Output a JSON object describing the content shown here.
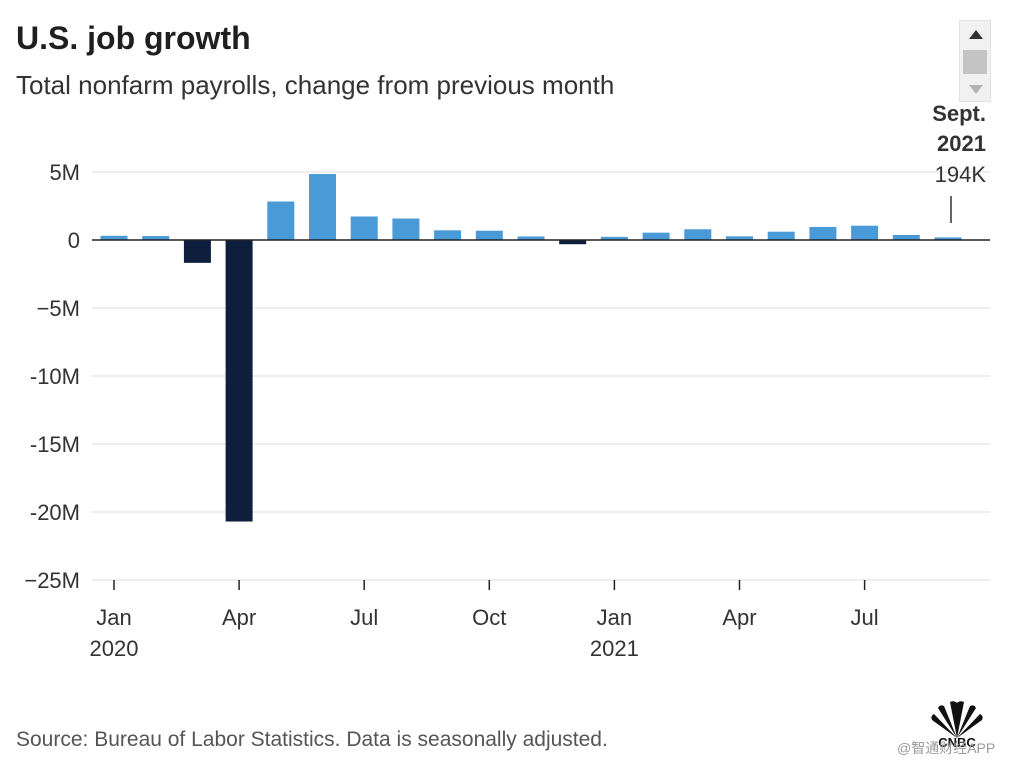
{
  "header": {
    "title": "U.S. job growth",
    "subtitle": "Total nonfarm payrolls, change from previous month"
  },
  "annotation": {
    "month": "Sept.",
    "year": "2021",
    "value_label": "194K"
  },
  "source": "Source: Bureau of Labor Statistics. Data is seasonally adjusted.",
  "logo": {
    "text": "CNBC",
    "icon": "peacock-logo-icon"
  },
  "watermark": "@智通财经APP",
  "colors": {
    "positive": "#4a9ad8",
    "negative": "#0d1f3c",
    "grid": "#dcdcdc",
    "axis": "#222222"
  },
  "chart_data": {
    "type": "bar",
    "title": "U.S. job growth",
    "subtitle": "Total nonfarm payrolls, change from previous month",
    "xlabel": "",
    "ylabel": "",
    "unit": "jobs (millions)",
    "ylim": [
      -25,
      5
    ],
    "yticks": [
      {
        "value": 5,
        "label": "5M"
      },
      {
        "value": 0,
        "label": "0"
      },
      {
        "value": -5,
        "label": "−5M"
      },
      {
        "value": -10,
        "label": "-10M"
      },
      {
        "value": -15,
        "label": "-15M"
      },
      {
        "value": -20,
        "label": "-20M"
      },
      {
        "value": -25,
        "label": "−25M"
      }
    ],
    "categories": [
      "2020-01",
      "2020-02",
      "2020-03",
      "2020-04",
      "2020-05",
      "2020-06",
      "2020-07",
      "2020-08",
      "2020-09",
      "2020-10",
      "2020-11",
      "2020-12",
      "2021-01",
      "2021-02",
      "2021-03",
      "2021-04",
      "2021-05",
      "2021-06",
      "2021-07",
      "2021-08",
      "2021-09"
    ],
    "values": [
      0.31,
      0.29,
      -1.68,
      -20.7,
      2.83,
      4.85,
      1.73,
      1.58,
      0.71,
      0.68,
      0.26,
      -0.31,
      0.23,
      0.54,
      0.79,
      0.27,
      0.61,
      0.96,
      1.05,
      0.37,
      0.19
    ],
    "xticks": [
      {
        "index": 0,
        "label": "Jan",
        "year": "2020"
      },
      {
        "index": 3,
        "label": "Apr",
        "year": ""
      },
      {
        "index": 6,
        "label": "Jul",
        "year": ""
      },
      {
        "index": 9,
        "label": "Oct",
        "year": ""
      },
      {
        "index": 12,
        "label": "Jan",
        "year": "2021"
      },
      {
        "index": 15,
        "label": "Apr",
        "year": ""
      },
      {
        "index": 18,
        "label": "Jul",
        "year": ""
      }
    ],
    "grid": true,
    "legend": "none"
  }
}
